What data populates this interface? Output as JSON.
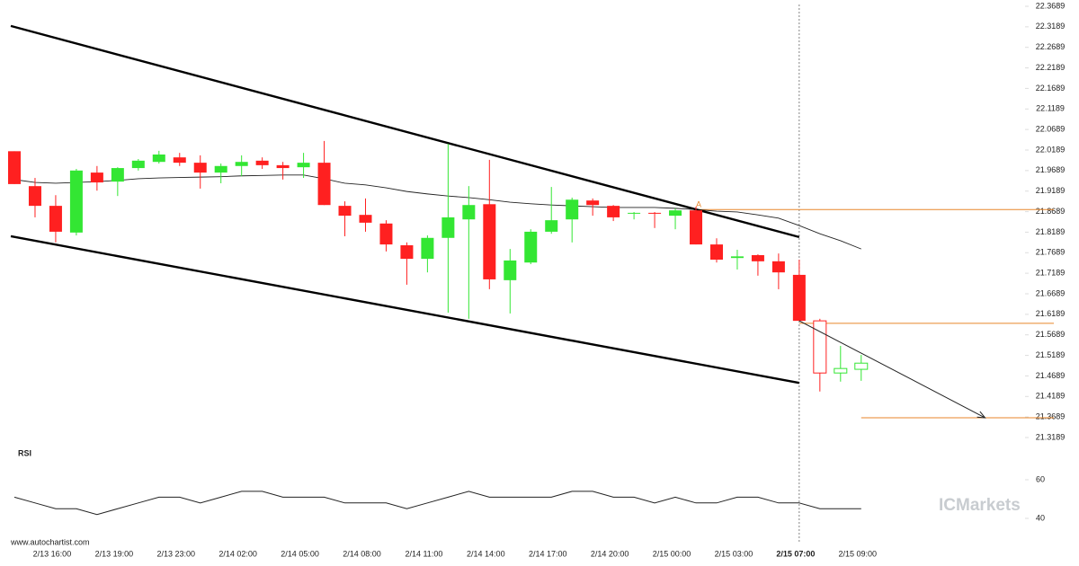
{
  "chart_data": {
    "type": "candlestick",
    "source": "www.autochartist.com",
    "watermark": "ICMarkets",
    "categories": [
      null,
      null,
      "2/13 16:00",
      null,
      null,
      "2/13 19:00",
      null,
      null,
      "2/13 23:00",
      null,
      null,
      "2/14 02:00",
      null,
      null,
      "2/14 05:00",
      null,
      null,
      "2/14 08:00",
      null,
      null,
      "2/14 11:00",
      null,
      null,
      "2/14 14:00",
      null,
      null,
      "2/14 17:00",
      null,
      null,
      "2/14 20:00",
      null,
      null,
      "2/15 00:00",
      null,
      null,
      "2/15 03:00",
      null,
      null,
      "2/15 07:00",
      null,
      null,
      "2/15 09:00"
    ],
    "current_index": 38,
    "hollow_from_index": 39,
    "up_color": "#33e633",
    "down_color": "#ff2020",
    "open": [
      22.016,
      21.931,
      21.883,
      21.818,
      21.964,
      21.942,
      21.975,
      21.99,
      22.001,
      21.988,
      21.964,
      21.98,
      21.993,
      21.982,
      21.977,
      21.988,
      21.883,
      21.861,
      21.84,
      21.787,
      21.754,
      21.805,
      21.85,
      21.887,
      21.702,
      21.745,
      21.82,
      21.85,
      21.896,
      21.883,
      21.864,
      21.866,
      21.859,
      21.872,
      21.789,
      21.756,
      21.763,
      21.748,
      21.715,
      21.603,
      21.476,
      21.485
    ],
    "high": [
      22.016,
      21.951,
      21.909,
      21.973,
      21.98,
      21.977,
      21.997,
      22.017,
      22.012,
      22.006,
      21.986,
      22.006,
      22.001,
      21.99,
      22.012,
      22.041,
      21.894,
      21.901,
      21.848,
      21.794,
      21.811,
      22.034,
      21.931,
      21.995,
      21.778,
      21.826,
      21.929,
      21.903,
      21.901,
      21.885,
      21.868,
      21.868,
      21.877,
      21.881,
      21.804,
      21.776,
      21.765,
      21.767,
      21.752,
      21.608,
      21.542,
      21.52
    ],
    "low": [
      21.936,
      21.855,
      21.794,
      21.811,
      21.92,
      21.907,
      21.969,
      21.986,
      21.98,
      21.925,
      21.938,
      21.955,
      21.973,
      21.947,
      21.951,
      21.885,
      21.809,
      21.82,
      21.772,
      21.691,
      21.721,
      21.623,
      21.608,
      21.68,
      21.621,
      21.741,
      21.815,
      21.794,
      21.859,
      21.846,
      21.85,
      21.829,
      21.826,
      21.789,
      21.745,
      21.728,
      21.713,
      21.68,
      21.603,
      21.431,
      21.455,
      21.457
    ],
    "close": [
      21.936,
      21.883,
      21.82,
      21.969,
      21.94,
      21.975,
      21.993,
      22.008,
      21.988,
      21.964,
      21.98,
      21.99,
      21.982,
      21.975,
      21.988,
      21.885,
      21.859,
      21.842,
      21.789,
      21.754,
      21.805,
      21.855,
      21.885,
      21.704,
      21.75,
      21.82,
      21.848,
      21.898,
      21.885,
      21.855,
      21.866,
      21.864,
      21.872,
      21.789,
      21.752,
      21.76,
      21.748,
      21.721,
      21.603,
      21.476,
      21.487,
      21.5
    ],
    "moving_average": [
      21.947,
      21.94,
      21.938,
      21.94,
      21.942,
      21.945,
      21.949,
      21.951,
      21.952,
      21.953,
      21.954,
      21.956,
      21.957,
      21.958,
      21.958,
      21.949,
      21.938,
      21.934,
      21.927,
      21.918,
      21.912,
      21.907,
      21.903,
      21.898,
      21.892,
      21.888,
      21.885,
      21.883,
      21.881,
      21.879,
      21.879,
      21.879,
      21.877,
      21.874,
      21.87,
      21.868,
      21.861,
      21.853,
      21.835,
      21.815,
      21.798,
      21.778
    ],
    "ylim": [
      21.3189,
      22.3689
    ],
    "yticks": [
      22.3689,
      22.3189,
      22.2689,
      22.2189,
      22.1689,
      22.1189,
      22.0689,
      22.0189,
      21.9689,
      21.9189,
      21.8689,
      21.8189,
      21.7689,
      21.7189,
      21.6689,
      21.6189,
      21.5689,
      21.5189,
      21.4689,
      21.4189,
      21.3689,
      21.3189
    ],
    "trendlines": [
      {
        "x": [
          0,
          38
        ],
        "y": [
          22.321,
          21.807
        ]
      },
      {
        "x": [
          0,
          38
        ],
        "y": [
          21.809,
          21.452
        ]
      }
    ],
    "forecast_arrow": {
      "x": [
        38,
        47
      ],
      "y": [
        21.603,
        21.367
      ]
    },
    "levels": [
      {
        "level": 21.874,
        "start": 33,
        "label": "A"
      },
      {
        "level": 21.597,
        "start": 38
      },
      {
        "level": 21.367,
        "start": 41
      }
    ],
    "level_color": "#e8862a",
    "rsi": {
      "label": "RSI",
      "ylim": [
        30,
        70
      ],
      "yticks": [
        60,
        40
      ],
      "values": [
        51,
        48,
        45,
        45,
        42,
        45,
        48,
        51,
        51,
        48,
        51,
        54,
        54,
        51,
        51,
        51,
        48,
        48,
        48,
        45,
        48,
        51,
        54,
        51,
        51,
        51,
        51,
        54,
        54,
        51,
        51,
        48,
        51,
        48,
        48,
        51,
        51,
        48,
        48,
        45,
        45,
        45
      ]
    }
  }
}
